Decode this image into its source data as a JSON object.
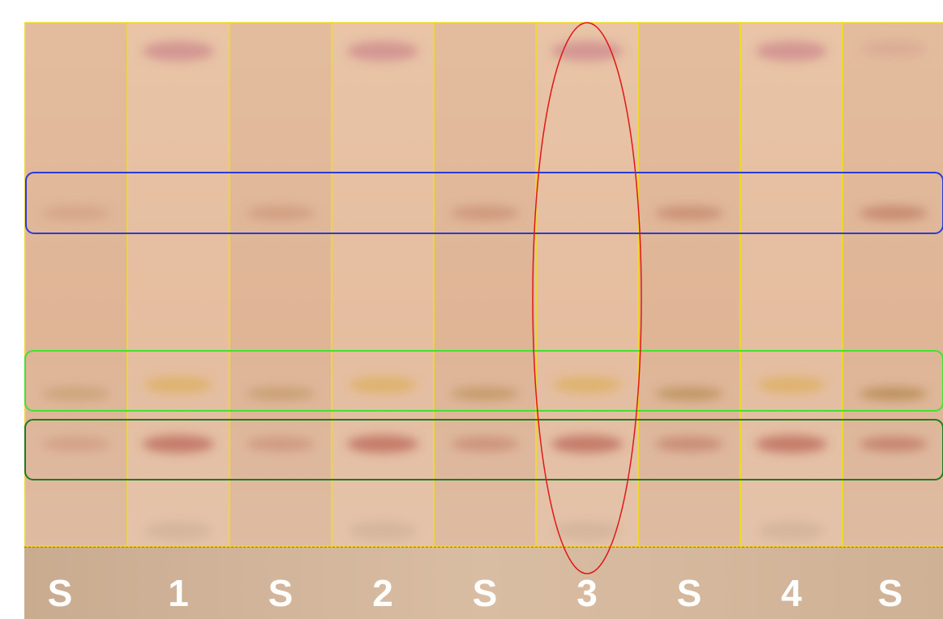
{
  "lanes": {
    "labels": [
      "S",
      "1",
      "S",
      "2",
      "S",
      "3",
      "S",
      "4",
      "S"
    ]
  }
}
